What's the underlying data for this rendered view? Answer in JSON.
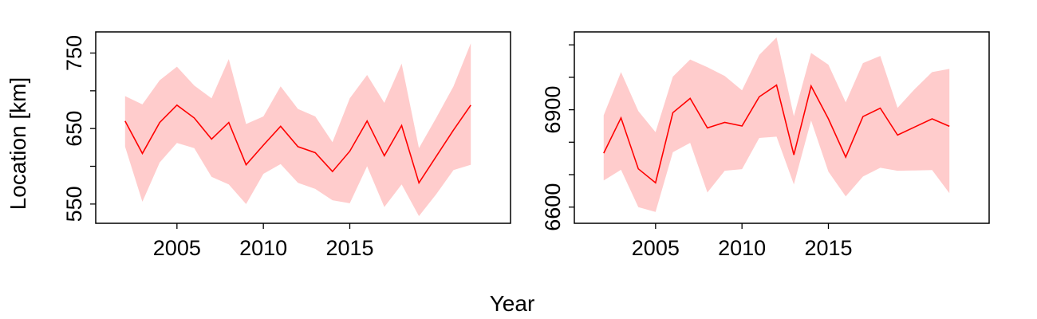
{
  "figure": {
    "xlabel": "Year",
    "ylabel": "Location [km]"
  },
  "colors": {
    "line": "#ff0000",
    "band": "#ffcccc",
    "axes": "#000000"
  },
  "chart_data": [
    {
      "type": "area",
      "x": [
        2002,
        2003,
        2004,
        2005,
        2006,
        2007,
        2008,
        2009,
        2010,
        2011,
        2012,
        2013,
        2014,
        2015,
        2016,
        2017,
        2018,
        2019,
        2020,
        2021,
        2022
      ],
      "series": [
        {
          "values": [
            660,
            617,
            658,
            681,
            664,
            636,
            658,
            602,
            628,
            653,
            626,
            618,
            593,
            620,
            660,
            614,
            654,
            578,
            613,
            648,
            681
          ],
          "lower": [
            626,
            553,
            605,
            631,
            624,
            586,
            576,
            550,
            590,
            603,
            578,
            570,
            555,
            551,
            600,
            546,
            576,
            534,
            563,
            595,
            602
          ],
          "upper": [
            693,
            682,
            714,
            732,
            707,
            690,
            742,
            656,
            666,
            706,
            676,
            666,
            632,
            690,
            721,
            684,
            736,
            624,
            664,
            706,
            763
          ]
        }
      ],
      "xlim": [
        2000.3,
        2024.3
      ],
      "ylim": [
        524.5,
        778
      ],
      "xticks": [
        2005,
        2010,
        2015
      ],
      "xtick_labels": [
        "2005",
        "2010",
        "2015"
      ],
      "yticks": [
        550,
        600,
        650,
        700,
        750
      ],
      "ytick_labels": [
        "550",
        "",
        "650",
        "",
        "750"
      ],
      "grid": false
    },
    {
      "type": "area",
      "x": [
        2002,
        2003,
        2004,
        2005,
        2006,
        2007,
        2008,
        2009,
        2010,
        2011,
        2012,
        2013,
        2014,
        2015,
        2016,
        2017,
        2018,
        2019,
        2020,
        2021,
        2022
      ],
      "series": [
        {
          "values": [
            6766,
            6875,
            6718,
            6675,
            6891,
            6935,
            6844,
            6861,
            6850,
            6940,
            6976,
            6761,
            6973,
            6872,
            6754,
            6879,
            6905,
            6822,
            6847,
            6872,
            6849
          ],
          "lower": [
            6682,
            6715,
            6600,
            6585,
            6769,
            6798,
            6645,
            6712,
            6717,
            6813,
            6817,
            6670,
            6867,
            6709,
            6633,
            6694,
            6721,
            6712,
            6713,
            6714,
            6643
          ],
          "upper": [
            6883,
            7016,
            6896,
            6831,
            7002,
            7055,
            7031,
            7004,
            6960,
            7069,
            7123,
            6880,
            7075,
            7039,
            6923,
            7044,
            7066,
            6906,
            6964,
            7016,
            7026
          ]
        }
      ],
      "xlim": [
        2000.3,
        2024.3
      ],
      "ylim": [
        6550,
        7140
      ],
      "xticks": [
        2005,
        2010,
        2015
      ],
      "xtick_labels": [
        "2005",
        "2010",
        "2015"
      ],
      "yticks": [
        6600,
        6700,
        6800,
        6900,
        7000,
        7100
      ],
      "ytick_labels": [
        "6600",
        "",
        "",
        "6900",
        "",
        ""
      ],
      "grid": false
    }
  ]
}
